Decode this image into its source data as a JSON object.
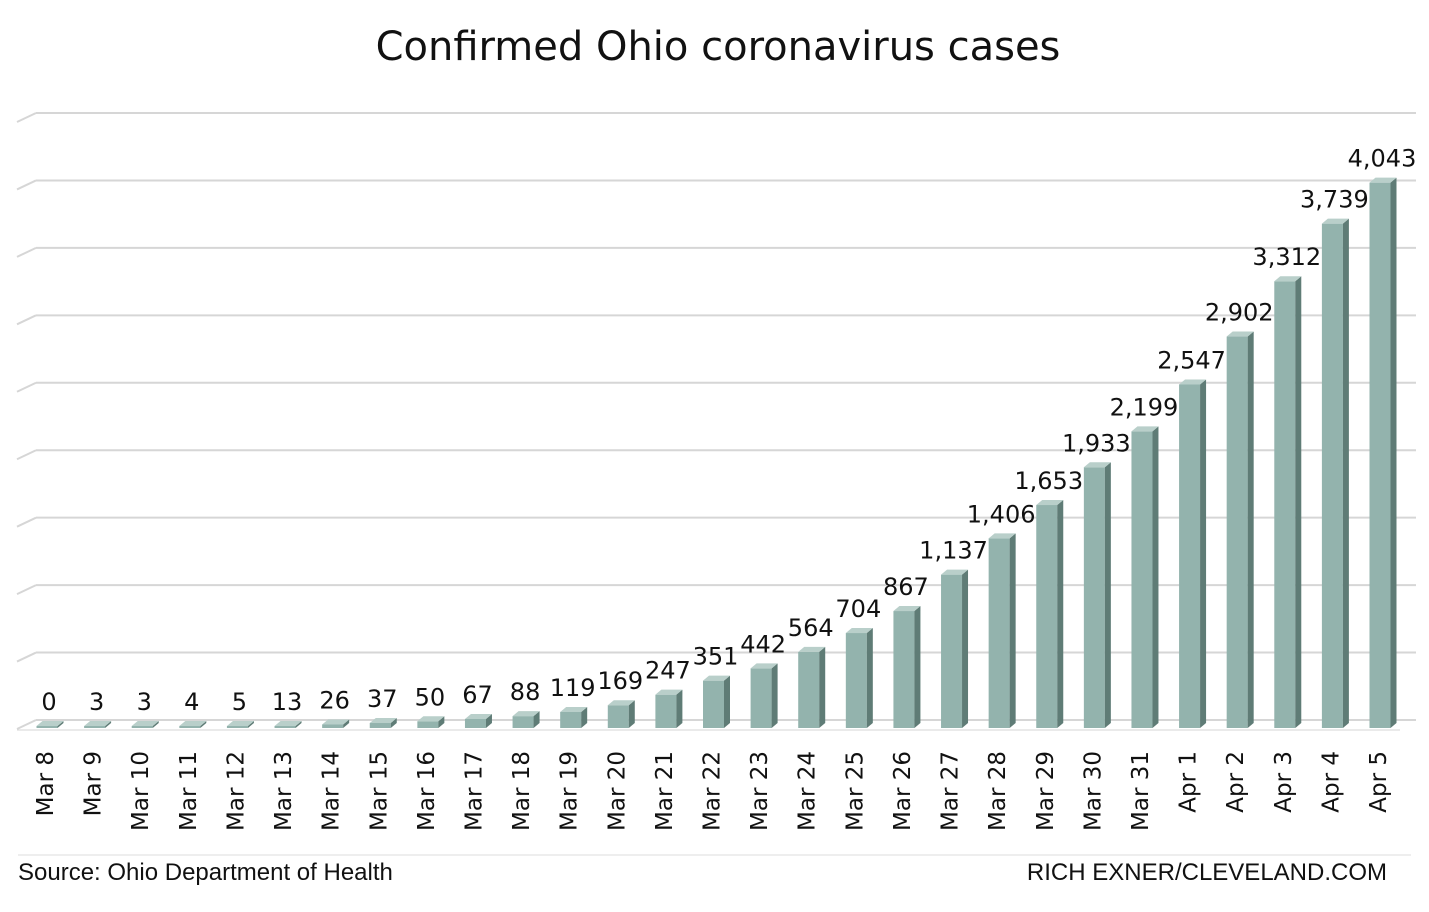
{
  "chart_data": {
    "type": "bar",
    "title": "Confirmed Ohio coronavirus cases",
    "xlabel": "",
    "ylabel": "",
    "ylim": [
      0,
      4500
    ],
    "y_axis_labels_shown": false,
    "grid": true,
    "style": "3d-columns",
    "bar_color": "#93b3ad",
    "categories": [
      "Mar 8",
      "Mar 9",
      "Mar 10",
      "Mar 11",
      "Mar 12",
      "Mar 13",
      "Mar 14",
      "Mar 15",
      "Mar 16",
      "Mar 17",
      "Mar 18",
      "Mar 19",
      "Mar 20",
      "Mar 21",
      "Mar 22",
      "Mar 23",
      "Mar 24",
      "Mar 25",
      "Mar 26",
      "Mar 27",
      "Mar 28",
      "Mar 29",
      "Mar 30",
      "Mar 31",
      "Apr 1",
      "Apr 2",
      "Apr 3",
      "Apr 4",
      "Apr 5"
    ],
    "values": [
      0,
      3,
      3,
      4,
      5,
      13,
      26,
      37,
      50,
      67,
      88,
      119,
      169,
      247,
      351,
      442,
      564,
      704,
      867,
      1137,
      1406,
      1653,
      1933,
      2199,
      2547,
      2902,
      3312,
      3739,
      4043
    ],
    "value_labels": [
      "0",
      "3",
      "3",
      "4",
      "5",
      "13",
      "26",
      "37",
      "50",
      "67",
      "88",
      "119",
      "169",
      "247",
      "351",
      "442",
      "564",
      "704",
      "867",
      "1,137",
      "1,406",
      "1,653",
      "1,933",
      "2,199",
      "2,547",
      "2,902",
      "3,312",
      "3,739",
      "4,043"
    ]
  },
  "footer": {
    "source": "Source: Ohio Department of Health",
    "credit": "RICH EXNER/CLEVELAND.COM"
  }
}
